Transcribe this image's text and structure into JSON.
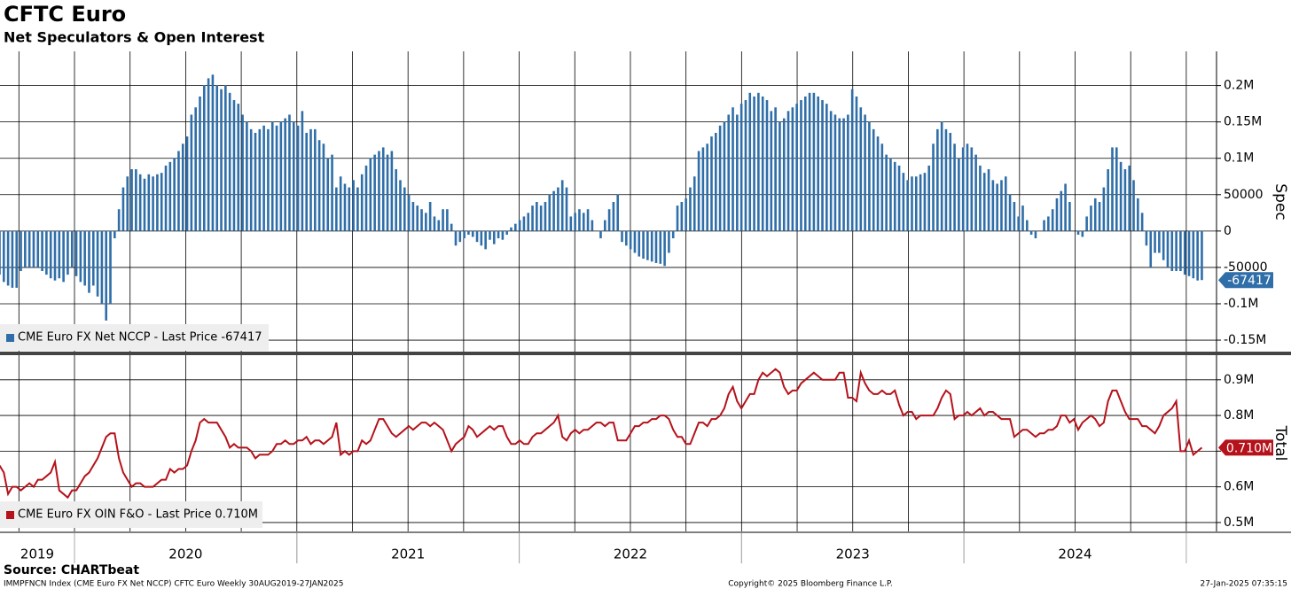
{
  "header": {
    "title": "CFTC Euro",
    "subtitle": "Net Speculators & Open Interest"
  },
  "footer": {
    "source": "Source: CHARTbeat",
    "index": "IMMPFNCN Index (CME Euro FX Net NCCP) CFTC Euro  Weekly 30AUG2019-27JAN2025",
    "copyright": "Copyright© 2025 Bloomberg Finance L.P.",
    "timestamp": "27-Jan-2025 07:35:15"
  },
  "x_axis": {
    "xlim": [
      2019.665,
      2025.128
    ],
    "data_span": [
      2019.663,
      2025.07
    ],
    "xticks": [
      2019.75,
      2020,
      2020.25,
      2020.5,
      2020.75,
      2021,
      2021.25,
      2021.5,
      2021.75,
      2022,
      2022.25,
      2022.5,
      2022.75,
      2023,
      2023.25,
      2023.5,
      2023.75,
      2024,
      2024.25,
      2024.5,
      2024.75,
      2025
    ],
    "year_bands": [
      {
        "value": 2019,
        "label": "2019"
      },
      {
        "value": 2020,
        "label": "2020"
      },
      {
        "value": 2021,
        "label": "2021"
      },
      {
        "value": 2022,
        "label": "2022"
      },
      {
        "value": 2023,
        "label": "2023"
      },
      {
        "value": 2024,
        "label": "2024"
      }
    ]
  },
  "chart_data": [
    {
      "type": "bar",
      "y_label": "Spec",
      "grid": true,
      "ylim": [
        -167000,
        247000
      ],
      "yticks": [
        {
          "value": -150000,
          "label": "-0.15M"
        },
        {
          "value": -100000,
          "label": "-0.1M"
        },
        -50000,
        0,
        50000,
        {
          "value": 100000,
          "label": "0.1M"
        },
        {
          "value": 150000,
          "label": "0.15M"
        },
        {
          "value": 200000,
          "label": "0.2M"
        }
      ],
      "series": [
        {
          "name": "CME Euro FX Net NCCP - Last Price -67417",
          "color": "#2f6ea8",
          "values": [
            -60000,
            -70000,
            -75000,
            -78000,
            -78000,
            -55000,
            -50000,
            -50000,
            -50000,
            -50000,
            -55000,
            -60000,
            -65000,
            -68000,
            -65000,
            -70000,
            -60000,
            -50000,
            -62000,
            -70000,
            -75000,
            -85000,
            -75000,
            -90000,
            -100000,
            -123000,
            -100000,
            -10000,
            30000,
            60000,
            75000,
            85000,
            85000,
            78000,
            72000,
            78000,
            75000,
            78000,
            80000,
            90000,
            95000,
            100000,
            110000,
            120000,
            130000,
            160000,
            170000,
            185000,
            200000,
            210000,
            215000,
            200000,
            195000,
            200000,
            190000,
            180000,
            175000,
            160000,
            150000,
            140000,
            135000,
            140000,
            145000,
            140000,
            150000,
            145000,
            150000,
            155000,
            160000,
            150000,
            145000,
            165000,
            135000,
            140000,
            140000,
            125000,
            120000,
            100000,
            105000,
            60000,
            75000,
            65000,
            60000,
            70000,
            60000,
            78000,
            90000,
            100000,
            105000,
            110000,
            115000,
            105000,
            110000,
            85000,
            70000,
            60000,
            50000,
            40000,
            35000,
            30000,
            25000,
            40000,
            20000,
            15000,
            30000,
            30000,
            10000,
            -20000,
            -15000,
            -10000,
            -5000,
            -8000,
            -15000,
            -20000,
            -25000,
            -12000,
            -18000,
            -10000,
            -12000,
            -5000,
            5000,
            10000,
            15000,
            20000,
            25000,
            35000,
            40000,
            35000,
            40000,
            50000,
            55000,
            60000,
            70000,
            60000,
            20000,
            25000,
            30000,
            25000,
            30000,
            15000,
            0,
            -10000,
            15000,
            30000,
            40000,
            50000,
            -15000,
            -20000,
            -25000,
            -30000,
            -35000,
            -38000,
            -40000,
            -42000,
            -44000,
            -45000,
            -48000,
            -30000,
            -10000,
            35000,
            40000,
            45000,
            60000,
            75000,
            110000,
            115000,
            120000,
            130000,
            135000,
            145000,
            150000,
            160000,
            170000,
            160000,
            175000,
            180000,
            190000,
            185000,
            190000,
            185000,
            180000,
            165000,
            170000,
            150000,
            155000,
            165000,
            170000,
            175000,
            180000,
            185000,
            190000,
            190000,
            185000,
            180000,
            175000,
            165000,
            160000,
            155000,
            155000,
            160000,
            195000,
            185000,
            170000,
            160000,
            150000,
            140000,
            130000,
            120000,
            105000,
            100000,
            95000,
            90000,
            80000,
            70000,
            75000,
            75000,
            78000,
            80000,
            90000,
            120000,
            140000,
            150000,
            140000,
            135000,
            120000,
            100000,
            115000,
            120000,
            115000,
            105000,
            90000,
            80000,
            85000,
            70000,
            65000,
            70000,
            75000,
            50000,
            40000,
            20000,
            35000,
            15000,
            -5000,
            -10000,
            0,
            15000,
            20000,
            30000,
            45000,
            55000,
            65000,
            40000,
            0,
            -5000,
            -8000,
            20000,
            35000,
            45000,
            40000,
            60000,
            85000,
            115000,
            115000,
            95000,
            85000,
            90000,
            70000,
            45000,
            25000,
            -20000,
            -50000,
            -30000,
            -30000,
            -40000,
            -50000,
            -55000,
            -55000,
            -55000,
            -60000,
            -62000,
            -65000,
            -68000,
            -67417
          ]
        }
      ]
    },
    {
      "type": "line",
      "y_label": "Total",
      "grid": true,
      "ylim": [
        0.475,
        0.969
      ],
      "yticks": [
        {
          "value": 0.5,
          "label": "0.5M"
        },
        {
          "value": 0.6,
          "label": "0.6M"
        },
        {
          "value": 0.7,
          "label": "0.7M"
        },
        {
          "value": 0.8,
          "label": "0.8M"
        },
        {
          "value": 0.9,
          "label": "0.9M"
        }
      ],
      "series": [
        {
          "name": "CME Euro FX OIN F&O - Last Price 0.710M",
          "color": "#b5121b",
          "last_value_label": "0.710M",
          "values": [
            0.66,
            0.64,
            0.58,
            0.6,
            0.6,
            0.59,
            0.6,
            0.61,
            0.6,
            0.62,
            0.62,
            0.63,
            0.64,
            0.67,
            0.59,
            0.58,
            0.57,
            0.59,
            0.59,
            0.61,
            0.63,
            0.64,
            0.66,
            0.68,
            0.71,
            0.74,
            0.75,
            0.75,
            0.68,
            0.64,
            0.62,
            0.6,
            0.61,
            0.61,
            0.6,
            0.6,
            0.6,
            0.61,
            0.62,
            0.62,
            0.65,
            0.64,
            0.65,
            0.65,
            0.66,
            0.7,
            0.73,
            0.78,
            0.79,
            0.78,
            0.78,
            0.78,
            0.76,
            0.74,
            0.71,
            0.72,
            0.71,
            0.71,
            0.71,
            0.7,
            0.68,
            0.69,
            0.69,
            0.69,
            0.7,
            0.72,
            0.72,
            0.73,
            0.72,
            0.72,
            0.73,
            0.73,
            0.74,
            0.72,
            0.73,
            0.73,
            0.72,
            0.73,
            0.74,
            0.78,
            0.69,
            0.7,
            0.69,
            0.7,
            0.7,
            0.73,
            0.72,
            0.73,
            0.76,
            0.79,
            0.79,
            0.77,
            0.75,
            0.74,
            0.75,
            0.76,
            0.77,
            0.76,
            0.77,
            0.78,
            0.78,
            0.77,
            0.78,
            0.77,
            0.76,
            0.73,
            0.7,
            0.72,
            0.73,
            0.74,
            0.77,
            0.76,
            0.74,
            0.75,
            0.76,
            0.77,
            0.76,
            0.77,
            0.77,
            0.74,
            0.72,
            0.72,
            0.73,
            0.72,
            0.72,
            0.74,
            0.75,
            0.75,
            0.76,
            0.77,
            0.78,
            0.8,
            0.74,
            0.73,
            0.75,
            0.76,
            0.75,
            0.76,
            0.76,
            0.77,
            0.78,
            0.78,
            0.77,
            0.78,
            0.78,
            0.73,
            0.73,
            0.73,
            0.75,
            0.77,
            0.77,
            0.78,
            0.78,
            0.79,
            0.79,
            0.8,
            0.8,
            0.79,
            0.76,
            0.74,
            0.74,
            0.72,
            0.72,
            0.75,
            0.78,
            0.78,
            0.77,
            0.79,
            0.79,
            0.8,
            0.82,
            0.86,
            0.88,
            0.84,
            0.82,
            0.84,
            0.86,
            0.86,
            0.9,
            0.92,
            0.91,
            0.92,
            0.93,
            0.92,
            0.88,
            0.86,
            0.87,
            0.87,
            0.89,
            0.9,
            0.91,
            0.92,
            0.91,
            0.9,
            0.9,
            0.9,
            0.9,
            0.92,
            0.92,
            0.85,
            0.85,
            0.84,
            0.92,
            0.89,
            0.87,
            0.86,
            0.86,
            0.87,
            0.86,
            0.86,
            0.87,
            0.83,
            0.8,
            0.81,
            0.81,
            0.79,
            0.8,
            0.8,
            0.8,
            0.8,
            0.82,
            0.85,
            0.87,
            0.86,
            0.79,
            0.8,
            0.8,
            0.81,
            0.8,
            0.81,
            0.82,
            0.8,
            0.81,
            0.81,
            0.8,
            0.79,
            0.79,
            0.79,
            0.74,
            0.75,
            0.76,
            0.76,
            0.75,
            0.74,
            0.75,
            0.75,
            0.76,
            0.76,
            0.77,
            0.8,
            0.8,
            0.78,
            0.79,
            0.76,
            0.78,
            0.79,
            0.8,
            0.79,
            0.77,
            0.78,
            0.84,
            0.87,
            0.87,
            0.84,
            0.81,
            0.79,
            0.79,
            0.79,
            0.77,
            0.77,
            0.76,
            0.75,
            0.77,
            0.8,
            0.81,
            0.82,
            0.84,
            0.7,
            0.7,
            0.73,
            0.69,
            0.7,
            0.71
          ]
        }
      ]
    }
  ]
}
